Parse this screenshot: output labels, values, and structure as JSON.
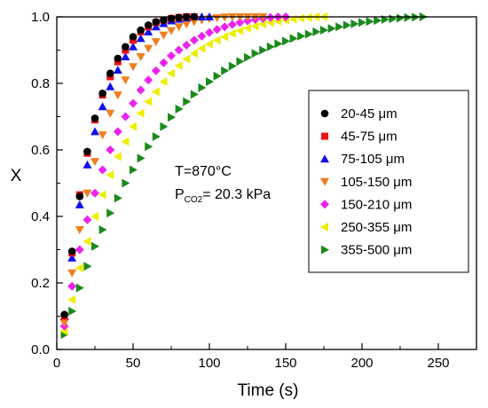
{
  "chart_data": {
    "type": "scatter",
    "xlabel": "Time (s)",
    "ylabel": "X",
    "xlim": [
      0,
      275
    ],
    "ylim": [
      0,
      1.0
    ],
    "xticks": [
      "0",
      "50",
      "100",
      "150",
      "200",
      "250"
    ],
    "yticks": [
      "0.0",
      "0.2",
      "0.4",
      "0.6",
      "0.8",
      "1.0"
    ],
    "annotation": {
      "line1": "T=870°C",
      "line2_main": "P",
      "line2_sub": "CO2",
      "line2_rest": "= 20.3 kPa"
    },
    "legend_position": "right",
    "series": [
      {
        "name": "20-45 μm",
        "marker": "circle",
        "color": "#000000",
        "x": [
          5,
          10,
          15,
          20,
          25,
          30,
          35,
          40,
          45,
          50,
          55,
          60,
          65,
          70,
          75,
          80,
          85,
          90
        ],
        "y": [
          0.105,
          0.295,
          0.46,
          0.595,
          0.695,
          0.77,
          0.83,
          0.875,
          0.91,
          0.94,
          0.96,
          0.975,
          0.985,
          0.99,
          0.995,
          0.998,
          1.0,
          1.0
        ]
      },
      {
        "name": "45-75 μm",
        "marker": "square",
        "color": "#ee1111",
        "x": [
          5,
          10,
          15,
          20,
          25,
          30,
          35,
          40,
          45,
          50,
          55,
          60,
          65,
          70,
          75,
          80,
          85,
          90
        ],
        "y": [
          0.1,
          0.29,
          0.465,
          0.59,
          0.69,
          0.765,
          0.82,
          0.865,
          0.9,
          0.93,
          0.955,
          0.97,
          0.983,
          0.99,
          0.995,
          0.998,
          1.0,
          1.0
        ]
      },
      {
        "name": "75-105 μm",
        "marker": "triangle-up",
        "color": "#1111ee",
        "x": [
          5,
          10,
          15,
          20,
          25,
          30,
          35,
          40,
          45,
          50,
          55,
          60,
          65,
          70,
          75,
          80,
          85,
          90,
          95,
          100
        ],
        "y": [
          0.1,
          0.275,
          0.435,
          0.555,
          0.655,
          0.73,
          0.79,
          0.84,
          0.88,
          0.91,
          0.935,
          0.955,
          0.97,
          0.98,
          0.988,
          0.993,
          0.997,
          1.0,
          1.0,
          1.0
        ]
      },
      {
        "name": "105-150 μm",
        "marker": "triangle-down",
        "color": "#f07f20",
        "x": [
          5,
          10,
          15,
          20,
          25,
          30,
          35,
          40,
          45,
          50,
          55,
          60,
          65,
          70,
          75,
          80,
          85,
          90,
          95,
          100,
          105,
          110,
          115,
          120,
          125,
          130,
          135
        ],
        "y": [
          0.08,
          0.23,
          0.36,
          0.47,
          0.565,
          0.645,
          0.71,
          0.765,
          0.81,
          0.85,
          0.88,
          0.905,
          0.925,
          0.945,
          0.958,
          0.97,
          0.978,
          0.985,
          0.99,
          0.994,
          0.997,
          0.999,
          1.0,
          1.0,
          1.0,
          1.0,
          1.0
        ]
      },
      {
        "name": "150-210 μm",
        "marker": "diamond",
        "color": "#ee22ee",
        "x": [
          5,
          10,
          15,
          20,
          25,
          30,
          35,
          40,
          45,
          50,
          55,
          60,
          65,
          70,
          75,
          80,
          85,
          90,
          95,
          100,
          105,
          110,
          115,
          120,
          125,
          130,
          135,
          140,
          145,
          150
        ],
        "y": [
          0.07,
          0.19,
          0.3,
          0.39,
          0.47,
          0.54,
          0.6,
          0.655,
          0.7,
          0.74,
          0.78,
          0.81,
          0.838,
          0.862,
          0.883,
          0.9,
          0.915,
          0.93,
          0.942,
          0.953,
          0.962,
          0.97,
          0.977,
          0.983,
          0.988,
          0.992,
          0.995,
          0.998,
          1.0,
          1.0
        ]
      },
      {
        "name": "250-355 μm",
        "marker": "triangle-left",
        "color": "#eeee00",
        "x": [
          5,
          10,
          15,
          20,
          25,
          30,
          35,
          40,
          45,
          50,
          55,
          60,
          65,
          70,
          75,
          80,
          85,
          90,
          95,
          100,
          105,
          110,
          115,
          120,
          125,
          130,
          135,
          140,
          145,
          150,
          155,
          160,
          165,
          170,
          175
        ],
        "y": [
          0.055,
          0.15,
          0.245,
          0.325,
          0.4,
          0.465,
          0.525,
          0.58,
          0.625,
          0.67,
          0.71,
          0.745,
          0.775,
          0.805,
          0.83,
          0.853,
          0.873,
          0.89,
          0.905,
          0.918,
          0.93,
          0.94,
          0.95,
          0.958,
          0.966,
          0.972,
          0.978,
          0.983,
          0.987,
          0.99,
          0.993,
          0.996,
          0.998,
          1.0,
          1.0
        ]
      },
      {
        "name": "355-500 μm",
        "marker": "triangle-right",
        "color": "#1a8a1a",
        "x": [
          5,
          10,
          15,
          20,
          25,
          30,
          35,
          40,
          45,
          50,
          55,
          60,
          65,
          70,
          75,
          80,
          85,
          90,
          95,
          100,
          105,
          110,
          115,
          120,
          125,
          130,
          135,
          140,
          145,
          150,
          155,
          160,
          165,
          170,
          175,
          180,
          185,
          190,
          195,
          200,
          205,
          210,
          215,
          220,
          225,
          230,
          235,
          240
        ],
        "y": [
          0.045,
          0.115,
          0.185,
          0.25,
          0.31,
          0.36,
          0.41,
          0.455,
          0.5,
          0.54,
          0.575,
          0.61,
          0.64,
          0.67,
          0.698,
          0.723,
          0.745,
          0.767,
          0.787,
          0.805,
          0.822,
          0.838,
          0.852,
          0.866,
          0.878,
          0.89,
          0.9,
          0.91,
          0.919,
          0.927,
          0.935,
          0.942,
          0.948,
          0.955,
          0.96,
          0.965,
          0.97,
          0.975,
          0.979,
          0.983,
          0.986,
          0.989,
          0.992,
          0.994,
          0.996,
          0.998,
          0.999,
          1.0
        ]
      }
    ]
  }
}
